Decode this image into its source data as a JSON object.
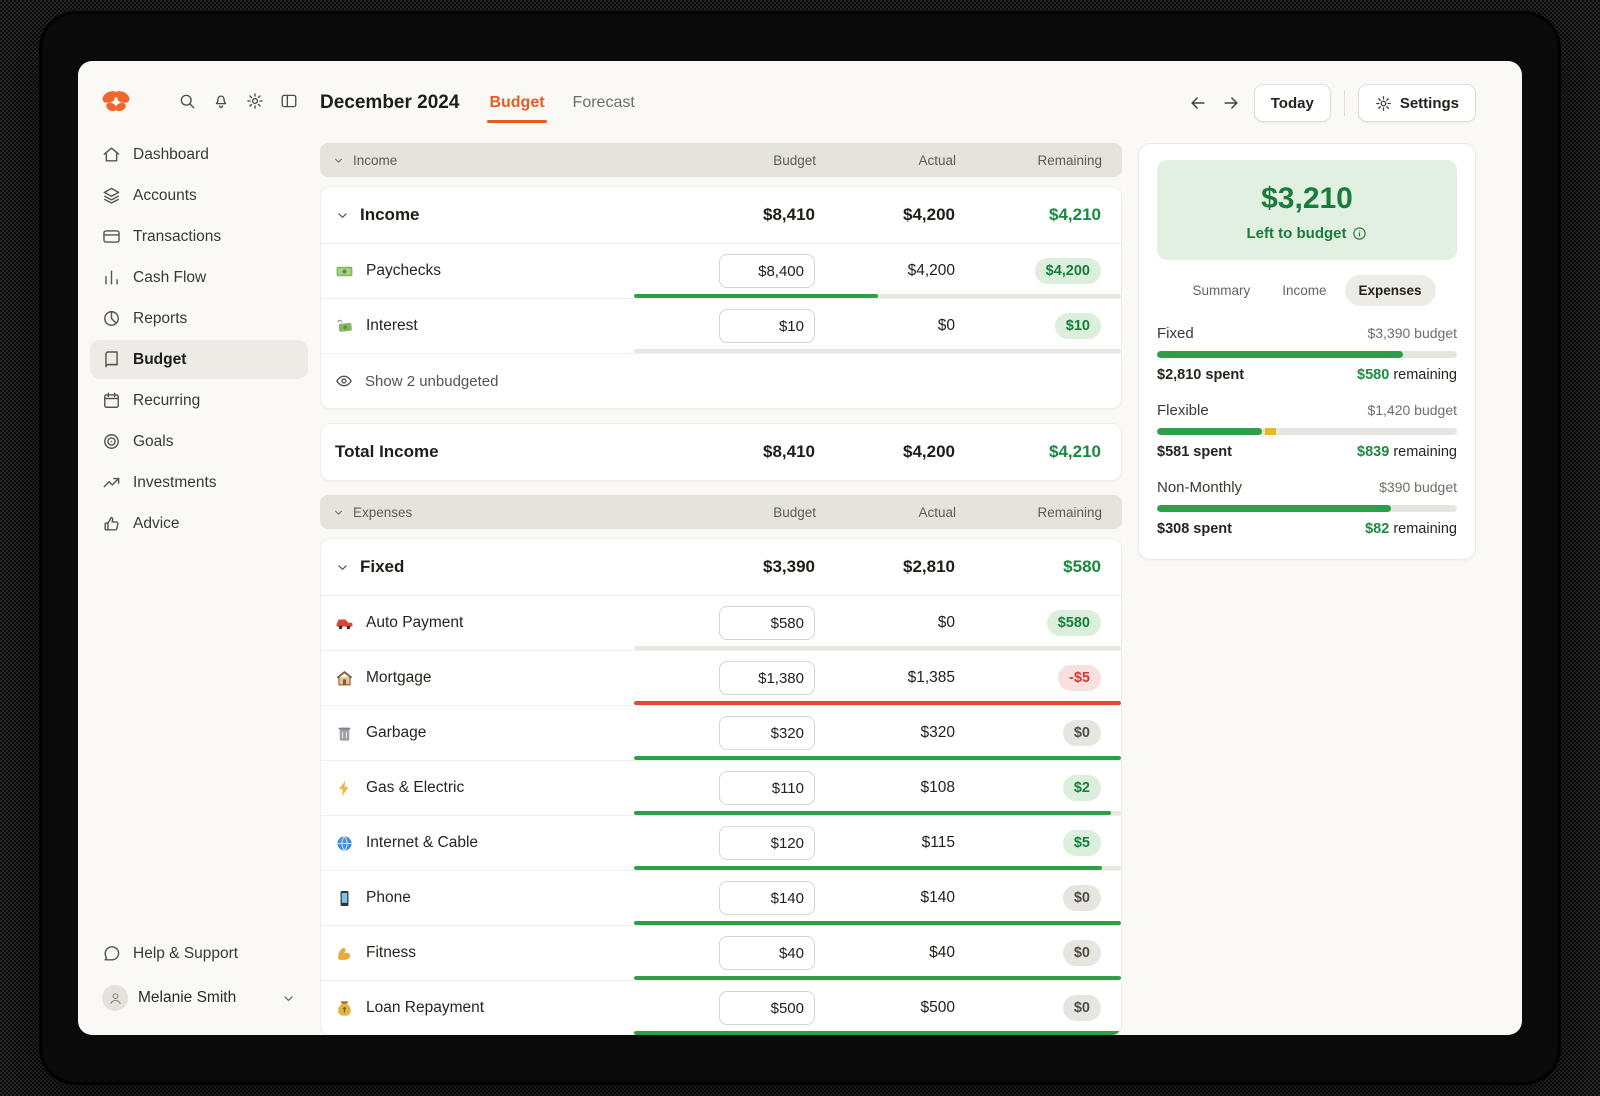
{
  "header": {
    "title": "December 2024",
    "tabs": [
      {
        "label": "Budget",
        "active": true
      },
      {
        "label": "Forecast",
        "active": false
      }
    ],
    "today_label": "Today",
    "settings_label": "Settings"
  },
  "sidebar": {
    "top_icons": [
      "search",
      "bell",
      "gear",
      "panel"
    ],
    "items": [
      {
        "label": "Dashboard",
        "icon": "home"
      },
      {
        "label": "Accounts",
        "icon": "layers"
      },
      {
        "label": "Transactions",
        "icon": "card"
      },
      {
        "label": "Cash Flow",
        "icon": "bars"
      },
      {
        "label": "Reports",
        "icon": "pie"
      },
      {
        "label": "Budget",
        "icon": "book",
        "active": true
      },
      {
        "label": "Recurring",
        "icon": "calendar"
      },
      {
        "label": "Goals",
        "icon": "target"
      },
      {
        "label": "Investments",
        "icon": "trend"
      },
      {
        "label": "Advice",
        "icon": "thumb"
      }
    ],
    "help_label": "Help & Support",
    "user_name": "Melanie Smith"
  },
  "budget_table": {
    "columns": [
      "Budget",
      "Actual",
      "Remaining"
    ],
    "sections": [
      {
        "header": "Income",
        "group": {
          "name": "Income",
          "budget": "$8,410",
          "actual": "$4,200",
          "remaining": "$4,210"
        },
        "rows": [
          {
            "icon": "banknote",
            "name": "Paychecks",
            "budget": "$8,400",
            "actual": "$4,200",
            "remaining": "$4,200",
            "badge": "green",
            "fill": 50,
            "bar_color": "green"
          },
          {
            "icon": "flying-money",
            "name": "Interest",
            "budget": "$10",
            "actual": "$0",
            "remaining": "$10",
            "badge": "green",
            "fill": 0,
            "bar_color": "green"
          }
        ],
        "unbudgeted_label": "Show 2 unbudgeted",
        "total": {
          "name": "Total Income",
          "budget": "$8,410",
          "actual": "$4,200",
          "remaining": "$4,210"
        }
      },
      {
        "header": "Expenses",
        "group": {
          "name": "Fixed",
          "budget": "$3,390",
          "actual": "$2,810",
          "remaining": "$580"
        },
        "rows": [
          {
            "icon": "car",
            "name": "Auto Payment",
            "budget": "$580",
            "actual": "$0",
            "remaining": "$580",
            "badge": "green",
            "fill": 0,
            "bar_color": "green"
          },
          {
            "icon": "house",
            "name": "Mortgage",
            "budget": "$1,380",
            "actual": "$1,385",
            "remaining": "-$5",
            "badge": "red",
            "fill": 100,
            "bar_color": "red"
          },
          {
            "icon": "trash",
            "name": "Garbage",
            "budget": "$320",
            "actual": "$320",
            "remaining": "$0",
            "badge": "gray",
            "fill": 100,
            "bar_color": "green"
          },
          {
            "icon": "bolt",
            "name": "Gas & Electric",
            "budget": "$110",
            "actual": "$108",
            "remaining": "$2",
            "badge": "green",
            "fill": 98,
            "bar_color": "green"
          },
          {
            "icon": "globe",
            "name": "Internet & Cable",
            "budget": "$120",
            "actual": "$115",
            "remaining": "$5",
            "badge": "green",
            "fill": 96,
            "bar_color": "green"
          },
          {
            "icon": "phone",
            "name": "Phone",
            "budget": "$140",
            "actual": "$140",
            "remaining": "$0",
            "badge": "gray",
            "fill": 100,
            "bar_color": "green"
          },
          {
            "icon": "flex",
            "name": "Fitness",
            "budget": "$40",
            "actual": "$40",
            "remaining": "$0",
            "badge": "gray",
            "fill": 100,
            "bar_color": "green"
          },
          {
            "icon": "moneybag",
            "name": "Loan Repayment",
            "budget": "$500",
            "actual": "$500",
            "remaining": "$0",
            "badge": "gray",
            "fill": 100,
            "bar_color": "green"
          }
        ]
      }
    ]
  },
  "summary_panel": {
    "left_to_budget": {
      "amount": "$3,210",
      "label": "Left to budget"
    },
    "tabs": [
      {
        "label": "Summary",
        "active": false
      },
      {
        "label": "Income",
        "active": false
      },
      {
        "label": "Expenses",
        "active": true
      }
    ],
    "sections": [
      {
        "label": "Fixed",
        "budget": "$3,390 budget",
        "spent": "$2,810 spent",
        "remaining_amount": "$580",
        "remaining_label": "remaining",
        "fill": 82
      },
      {
        "label": "Flexible",
        "budget": "$1,420 budget",
        "spent": "$581 spent",
        "remaining_amount": "$839",
        "remaining_label": "remaining",
        "fill": 35,
        "marker": 36
      },
      {
        "label": "Non-Monthly",
        "budget": "$390 budget",
        "spent": "$308 spent",
        "remaining_amount": "$82",
        "remaining_label": "remaining",
        "fill": 78
      }
    ]
  },
  "colors": {
    "accent_orange": "#e85a24",
    "green": "#178a3f",
    "red": "#d03b33",
    "badge_green_bg": "#dcefdc",
    "banner_bg": "#e2f0e1"
  }
}
